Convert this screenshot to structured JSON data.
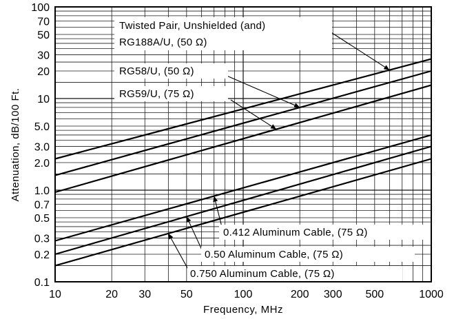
{
  "chart_data": {
    "type": "line",
    "x_scale": "log",
    "y_scale": "log",
    "xlabel": "Frequency, MHz",
    "ylabel": "Attenuation, dB/100 Ft.",
    "xlim": [
      10,
      1000
    ],
    "ylim": [
      0.1,
      100
    ],
    "grid": true,
    "x_tick_labels": [
      "10",
      "20",
      "30",
      "50",
      "100",
      "200",
      "300",
      "500",
      "1000"
    ],
    "y_tick_labels": [
      "0.1",
      "0.2",
      "0.3",
      "0.5",
      "0.7",
      "1.0",
      "2.0",
      "3.0",
      "5.0",
      "10",
      "20",
      "30",
      "50",
      "70",
      "100"
    ],
    "series": [
      {
        "name": "Twisted Pair, Unshielded (and) RG188A/U, (50 Ω)",
        "label_lines": [
          "Twisted Pair, Unshielded  (and)",
          "RG188A/U, (50 Ω)"
        ],
        "x": [
          10,
          1000
        ],
        "y": [
          2.2,
          27
        ]
      },
      {
        "name": "RG58/U, (50 Ω)",
        "label_lines": [
          "RG58/U, (50 Ω)"
        ],
        "x": [
          10,
          1000
        ],
        "y": [
          1.45,
          20
        ]
      },
      {
        "name": "RG59/U, (75 Ω)",
        "label_lines": [
          "RG59/U, (75 Ω)"
        ],
        "x": [
          10,
          1000
        ],
        "y": [
          0.95,
          14
        ]
      },
      {
        "name": "0.412 Aluminum Cable, (75 Ω)",
        "label_lines": [
          "0.412 Aluminum Cable, (75 Ω)"
        ],
        "x": [
          10,
          1000
        ],
        "y": [
          0.28,
          4
        ]
      },
      {
        "name": "0.50 Aluminum Cable, (75 Ω)",
        "label_lines": [
          "0.50 Aluminum Cable, (75 Ω)"
        ],
        "x": [
          10,
          1000
        ],
        "y": [
          0.2,
          3
        ]
      },
      {
        "name": "0.750 Aluminum Cable, (75 Ω)",
        "label_lines": [
          "0.750 Aluminum Cable, (75 Ω)"
        ],
        "x": [
          10,
          1000
        ],
        "y": [
          0.15,
          2.2
        ]
      }
    ]
  }
}
